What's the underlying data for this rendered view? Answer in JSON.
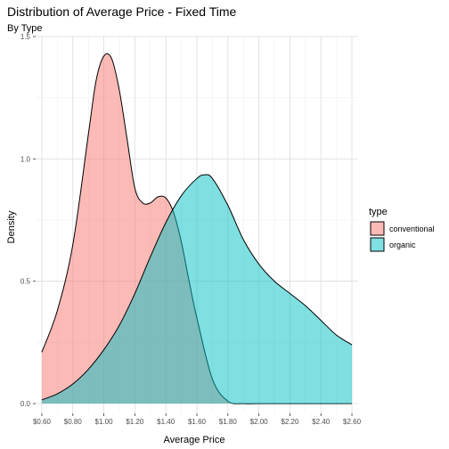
{
  "chart_data": {
    "type": "area",
    "title": "Distribution of Average Price - Fixed Time",
    "subtitle": "By Type",
    "xlabel": "Average Price",
    "ylabel": "Density",
    "xlim": [
      0.56,
      2.64
    ],
    "ylim": [
      -0.04,
      1.5
    ],
    "x_ticks": [
      0.6,
      0.8,
      1.0,
      1.2,
      1.4,
      1.6,
      1.8,
      2.0,
      2.2,
      2.4,
      2.6
    ],
    "x_tick_labels": [
      "$0.60",
      "$0.80",
      "$1.00",
      "$1.20",
      "$1.40",
      "$1.60",
      "$1.80",
      "$2.00",
      "$2.20",
      "$2.40",
      "$2.60"
    ],
    "y_ticks": [
      0.0,
      0.5,
      1.0,
      1.5
    ],
    "y_tick_labels": [
      "0.0",
      "0.5",
      "1.0",
      "1.5"
    ],
    "grid": true,
    "legend": {
      "title": "type",
      "position": "right"
    },
    "series": [
      {
        "name": "conventional",
        "color": "#F8766D",
        "x": [
          0.6,
          0.7,
          0.8,
          0.9,
          0.95,
          1.0,
          1.05,
          1.1,
          1.15,
          1.2,
          1.25,
          1.3,
          1.35,
          1.4,
          1.45,
          1.5,
          1.55,
          1.6,
          1.7,
          1.8,
          1.9,
          2.0,
          2.2,
          2.4,
          2.6
        ],
        "values": [
          0.21,
          0.38,
          0.65,
          1.1,
          1.32,
          1.42,
          1.41,
          1.28,
          1.08,
          0.88,
          0.82,
          0.82,
          0.845,
          0.84,
          0.78,
          0.66,
          0.5,
          0.35,
          0.1,
          0.01,
          0.0,
          0.0,
          0.0,
          0.0,
          0.0
        ]
      },
      {
        "name": "organic",
        "color": "#00BFC4",
        "x": [
          0.6,
          0.7,
          0.8,
          0.9,
          1.0,
          1.1,
          1.2,
          1.3,
          1.4,
          1.5,
          1.6,
          1.65,
          1.7,
          1.8,
          1.9,
          2.0,
          2.1,
          2.2,
          2.3,
          2.4,
          2.5,
          2.6
        ],
        "values": [
          0.015,
          0.04,
          0.08,
          0.14,
          0.22,
          0.32,
          0.45,
          0.6,
          0.74,
          0.85,
          0.92,
          0.935,
          0.92,
          0.81,
          0.67,
          0.57,
          0.5,
          0.45,
          0.4,
          0.34,
          0.28,
          0.24
        ]
      }
    ]
  }
}
